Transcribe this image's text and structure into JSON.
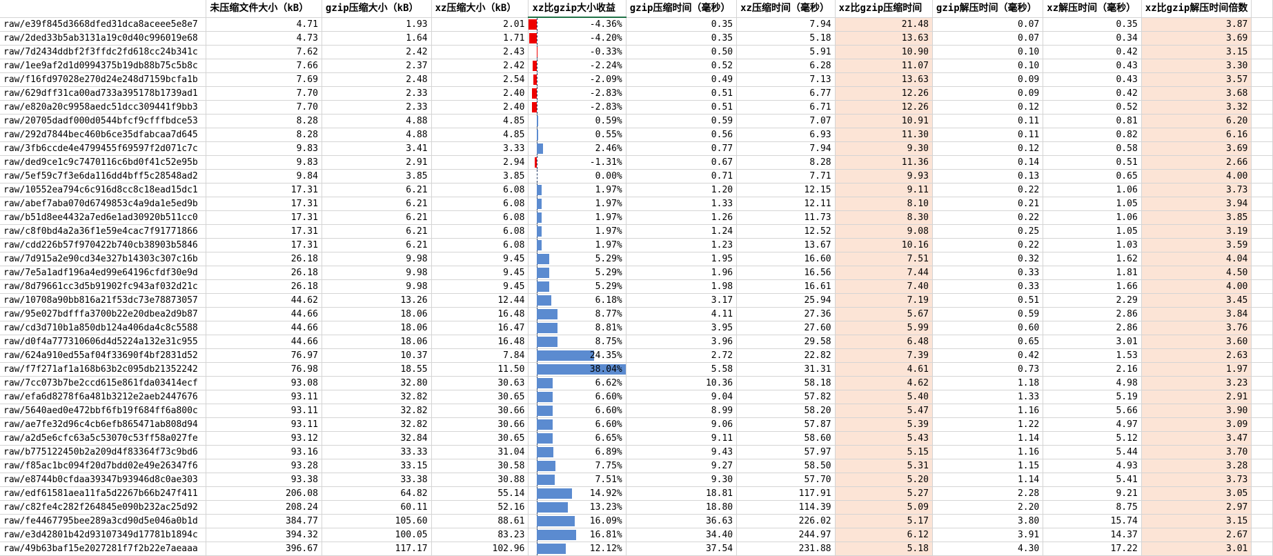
{
  "accent": {
    "bar_positive": "#5b8bd0",
    "bar_negative": "#ee0000",
    "highlight_fill": "#fce4d6",
    "selected_underline": "#1e7145"
  },
  "headers": [
    "未压缩文件大小（kB）",
    "gzip压缩大小（kB）",
    "xz压缩大小（kB）",
    "xz比gzip大小收益",
    "gzip压缩时间（毫秒）",
    "xz压缩时间（毫秒）",
    "xz比gzip压缩时间",
    "gzip解压时间（毫秒）",
    "xz解压时间（毫秒）",
    "xz比gzip解压时间倍数"
  ],
  "gain_bar_scale_max": 38.04,
  "rows": [
    [
      "raw/e39f845d3668dfed31dca8aceee5e8e7",
      "4.71",
      "1.93",
      "2.01",
      "-4.36%",
      "0.35",
      "7.94",
      "21.48",
      "0.07",
      "0.35",
      "3.87"
    ],
    [
      "raw/2ded33b5ab3131a19c0d40c996019e68",
      "4.73",
      "1.64",
      "1.71",
      "-4.20%",
      "0.35",
      "5.18",
      "13.63",
      "0.07",
      "0.34",
      "3.69"
    ],
    [
      "raw/7d2434ddbf2f3ffdc2fd618cc24b341c",
      "7.62",
      "2.42",
      "2.43",
      "-0.33%",
      "0.50",
      "5.91",
      "10.90",
      "0.10",
      "0.42",
      "3.15"
    ],
    [
      "raw/1ee9af2d1d0994375b19db88b75c5b8c",
      "7.66",
      "2.37",
      "2.42",
      "-2.24%",
      "0.52",
      "6.28",
      "11.07",
      "0.10",
      "0.43",
      "3.30"
    ],
    [
      "raw/f16fd97028e270d24e248d7159bcfa1b",
      "7.69",
      "2.48",
      "2.54",
      "-2.09%",
      "0.49",
      "7.13",
      "13.63",
      "0.09",
      "0.43",
      "3.57"
    ],
    [
      "raw/629dff31ca00ad733a395178b1739ad1",
      "7.70",
      "2.33",
      "2.40",
      "-2.83%",
      "0.51",
      "6.77",
      "12.26",
      "0.09",
      "0.42",
      "3.68"
    ],
    [
      "raw/e820a20c9958aedc51dcc309441f9bb3",
      "7.70",
      "2.33",
      "2.40",
      "-2.83%",
      "0.51",
      "6.71",
      "12.26",
      "0.12",
      "0.52",
      "3.32"
    ],
    [
      "raw/20705dadf000d0544bfcf9cfffbdce53",
      "8.28",
      "4.88",
      "4.85",
      "0.59%",
      "0.59",
      "7.07",
      "10.91",
      "0.11",
      "0.81",
      "6.20"
    ],
    [
      "raw/292d7844bec460b6ce35dfabcaa7d645",
      "8.28",
      "4.88",
      "4.85",
      "0.55%",
      "0.56",
      "6.93",
      "11.30",
      "0.11",
      "0.82",
      "6.16"
    ],
    [
      "raw/3fb6ccde4e4799455f69597f2d071c7c",
      "9.83",
      "3.41",
      "3.33",
      "2.46%",
      "0.77",
      "7.94",
      "9.30",
      "0.12",
      "0.58",
      "3.69"
    ],
    [
      "raw/ded9ce1c9c7470116c6bd0f41c52e95b",
      "9.83",
      "2.91",
      "2.94",
      "-1.31%",
      "0.67",
      "8.28",
      "11.36",
      "0.14",
      "0.51",
      "2.66"
    ],
    [
      "raw/5ef59c7f3e6da116dd4bff5c28548ad2",
      "9.84",
      "3.85",
      "3.85",
      "0.00%",
      "0.71",
      "7.71",
      "9.93",
      "0.13",
      "0.65",
      "4.00"
    ],
    [
      "raw/10552ea794c6c916d8cc8c18ead15dc1",
      "17.31",
      "6.21",
      "6.08",
      "1.97%",
      "1.20",
      "12.15",
      "9.11",
      "0.22",
      "1.06",
      "3.73"
    ],
    [
      "raw/abef7aba070d6749853c4a9da1e5ed9b",
      "17.31",
      "6.21",
      "6.08",
      "1.97%",
      "1.33",
      "12.11",
      "8.10",
      "0.21",
      "1.05",
      "3.94"
    ],
    [
      "raw/b51d8ee4432a7ed6e1ad30920b511cc0",
      "17.31",
      "6.21",
      "6.08",
      "1.97%",
      "1.26",
      "11.73",
      "8.30",
      "0.22",
      "1.06",
      "3.85"
    ],
    [
      "raw/c8f0bd4a2a36f1e59e4cac7f91771866",
      "17.31",
      "6.21",
      "6.08",
      "1.97%",
      "1.24",
      "12.52",
      "9.08",
      "0.25",
      "1.05",
      "3.19"
    ],
    [
      "raw/cdd226b57f970422b740cb38903b5846",
      "17.31",
      "6.21",
      "6.08",
      "1.97%",
      "1.23",
      "13.67",
      "10.16",
      "0.22",
      "1.03",
      "3.59"
    ],
    [
      "raw/7d915a2e90cd34e327b14303c307c16b",
      "26.18",
      "9.98",
      "9.45",
      "5.29%",
      "1.95",
      "16.60",
      "7.51",
      "0.32",
      "1.62",
      "4.04"
    ],
    [
      "raw/7e5a1adf196a4ed99e64196cfdf30e9d",
      "26.18",
      "9.98",
      "9.45",
      "5.29%",
      "1.96",
      "16.56",
      "7.44",
      "0.33",
      "1.81",
      "4.50"
    ],
    [
      "raw/8d79661cc3d5b91902fc943af032d21c",
      "26.18",
      "9.98",
      "9.45",
      "5.29%",
      "1.98",
      "16.61",
      "7.40",
      "0.33",
      "1.66",
      "4.00"
    ],
    [
      "raw/10708a90bb816a21f53dc73e78873057",
      "44.62",
      "13.26",
      "12.44",
      "6.18%",
      "3.17",
      "25.94",
      "7.19",
      "0.51",
      "2.29",
      "3.45"
    ],
    [
      "raw/95e027bdfffa3700b22e20dbea2d9b87",
      "44.66",
      "18.06",
      "16.48",
      "8.77%",
      "4.11",
      "27.36",
      "5.67",
      "0.59",
      "2.86",
      "3.84"
    ],
    [
      "raw/cd3d710b1a850db124a406da4c8c5588",
      "44.66",
      "18.06",
      "16.47",
      "8.81%",
      "3.95",
      "27.60",
      "5.99",
      "0.60",
      "2.86",
      "3.76"
    ],
    [
      "raw/d0f4a777310606d4d5224a132e31c955",
      "44.66",
      "18.06",
      "16.48",
      "8.75%",
      "3.96",
      "29.58",
      "6.48",
      "0.65",
      "3.01",
      "3.60"
    ],
    [
      "raw/624a910ed55af04f33690f4bf2831d52",
      "76.97",
      "10.37",
      "7.84",
      "24.35%",
      "2.72",
      "22.82",
      "7.39",
      "0.42",
      "1.53",
      "2.63"
    ],
    [
      "raw/f7f271af1a168b63b2c095db21352242",
      "76.98",
      "18.55",
      "11.50",
      "38.04%",
      "5.58",
      "31.31",
      "4.61",
      "0.73",
      "2.16",
      "1.97"
    ],
    [
      "raw/7cc073b7be2ccd615e861fda03414ecf",
      "93.08",
      "32.80",
      "30.63",
      "6.62%",
      "10.36",
      "58.18",
      "4.62",
      "1.18",
      "4.98",
      "3.23"
    ],
    [
      "raw/efa6d8278f6a481b3212e2aeb2447676",
      "93.11",
      "32.82",
      "30.65",
      "6.60%",
      "9.04",
      "57.82",
      "5.40",
      "1.33",
      "5.19",
      "2.91"
    ],
    [
      "raw/5640aed0e472bbf6fb19f684ff6a800c",
      "93.11",
      "32.82",
      "30.66",
      "6.60%",
      "8.99",
      "58.20",
      "5.47",
      "1.16",
      "5.66",
      "3.90"
    ],
    [
      "raw/ae7fe32d96c4cb6efb865471ab808d94",
      "93.11",
      "32.82",
      "30.66",
      "6.60%",
      "9.06",
      "57.87",
      "5.39",
      "1.22",
      "4.97",
      "3.09"
    ],
    [
      "raw/a2d5e6cfc63a5c53070c53ff58a027fe",
      "93.12",
      "32.84",
      "30.65",
      "6.65%",
      "9.11",
      "58.60",
      "5.43",
      "1.14",
      "5.12",
      "3.47"
    ],
    [
      "raw/b775122450b2a209d4f83364f73c9bd6",
      "93.16",
      "33.33",
      "31.04",
      "6.89%",
      "9.43",
      "57.97",
      "5.15",
      "1.16",
      "5.44",
      "3.70"
    ],
    [
      "raw/f85ac1bc094f20d7bdd02e49e26347f6",
      "93.28",
      "33.15",
      "30.58",
      "7.75%",
      "9.27",
      "58.50",
      "5.31",
      "1.15",
      "4.93",
      "3.28"
    ],
    [
      "raw/e8744b0cfdaa39347b93946d8c0ae303",
      "93.38",
      "33.38",
      "30.88",
      "7.51%",
      "9.30",
      "57.70",
      "5.20",
      "1.14",
      "5.41",
      "3.73"
    ],
    [
      "raw/edf61581aea11fa5d2267b66b247f411",
      "206.08",
      "64.82",
      "55.14",
      "14.92%",
      "18.81",
      "117.91",
      "5.27",
      "2.28",
      "9.21",
      "3.05"
    ],
    [
      "raw/c82fe4c282f264845e090b232ac25d92",
      "208.24",
      "60.11",
      "52.16",
      "13.23%",
      "18.80",
      "114.39",
      "5.09",
      "2.20",
      "8.75",
      "2.97"
    ],
    [
      "raw/fe4467795bee289a3cd90d5e046a0b1d",
      "384.77",
      "105.60",
      "88.61",
      "16.09%",
      "36.63",
      "226.02",
      "5.17",
      "3.80",
      "15.74",
      "3.15"
    ],
    [
      "raw/e3d42801b42d93107349d17781b1894c",
      "394.32",
      "100.05",
      "83.23",
      "16.81%",
      "34.40",
      "244.97",
      "6.12",
      "3.91",
      "14.37",
      "2.67"
    ],
    [
      "raw/49b63baf15e2027281f7f2b22e7aeaaa",
      "396.67",
      "117.17",
      "102.96",
      "12.12%",
      "37.54",
      "231.88",
      "5.18",
      "4.30",
      "17.22",
      "3.01"
    ]
  ]
}
